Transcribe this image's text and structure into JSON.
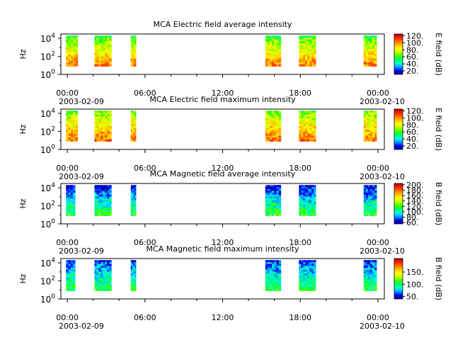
{
  "colors": {
    "axis": "#000000",
    "background": "#ffffff",
    "colormap": [
      "#000090",
      "#0000ff",
      "#00a0ff",
      "#00ffe0",
      "#00ff60",
      "#40ff00",
      "#c0ff00",
      "#ffff00",
      "#ffc000",
      "#ff7000",
      "#ff2000",
      "#b00000"
    ]
  },
  "chart_data": [
    {
      "type": "heatmap",
      "title": "MCA  Electric field average intensity",
      "ylabel": "Hz",
      "xlabel": "",
      "yscale": "log",
      "ylim": [
        1,
        30000
      ],
      "y_ticks": [
        "10",
        "10",
        "10"
      ],
      "y_tick_exps": [
        "0",
        "2",
        "4"
      ],
      "x_ticks": [
        "00:00",
        "06:00",
        "12:00",
        "18:00",
        "00:00"
      ],
      "x_start_label": "2003-02-09",
      "x_end_label": "2003-02-10",
      "xlim_hours": [
        -0.5,
        24.5
      ],
      "data_intervals_hours": [
        [
          -0.1,
          0.8
        ],
        [
          2.1,
          3.4
        ],
        [
          4.9,
          5.3
        ],
        [
          15.3,
          16.5
        ],
        [
          17.9,
          19.2
        ],
        [
          22.9,
          23.9
        ]
      ],
      "colorbar": {
        "label": "E field (dB)",
        "ticks": [
          "20.",
          "40.",
          "60.",
          "80.",
          "100.",
          "120."
        ],
        "tick_values": [
          20,
          40,
          60,
          80,
          100,
          120
        ],
        "range": [
          10,
          125
        ]
      },
      "intensity_profile": {
        "high_freq_level": 0.45,
        "low_freq_level": 0.8,
        "top_band_level": 0.4
      }
    },
    {
      "type": "heatmap",
      "title": "MCA  Electric field maximum intensity",
      "ylabel": "Hz",
      "xlabel": "",
      "yscale": "log",
      "ylim": [
        1,
        30000
      ],
      "y_ticks": [
        "10",
        "10",
        "10"
      ],
      "y_tick_exps": [
        "0",
        "2",
        "4"
      ],
      "x_ticks": [
        "00:00",
        "06:00",
        "12:00",
        "18:00",
        "00:00"
      ],
      "x_start_label": "2003-02-09",
      "x_end_label": "2003-02-10",
      "xlim_hours": [
        -0.5,
        24.5
      ],
      "data_intervals_hours": [
        [
          -0.1,
          0.8
        ],
        [
          2.1,
          3.4
        ],
        [
          4.9,
          5.3
        ],
        [
          15.3,
          16.5
        ],
        [
          17.9,
          19.2
        ],
        [
          22.9,
          23.9
        ]
      ],
      "colorbar": {
        "label": "E field (dB)",
        "ticks": [
          "20.",
          "40.",
          "60.",
          "80.",
          "100.",
          "120."
        ],
        "tick_values": [
          20,
          40,
          60,
          80,
          100,
          120
        ],
        "range": [
          10,
          125
        ]
      },
      "intensity_profile": {
        "high_freq_level": 0.5,
        "low_freq_level": 0.82,
        "top_band_level": 0.45
      }
    },
    {
      "type": "heatmap",
      "title": "MCA  Magnetic field average intensity",
      "ylabel": "Hz",
      "xlabel": "",
      "yscale": "log",
      "ylim": [
        1,
        30000
      ],
      "y_ticks": [
        "10",
        "10",
        "10"
      ],
      "y_tick_exps": [
        "0",
        "2",
        "4"
      ],
      "x_ticks": [
        "00:00",
        "06:00",
        "12:00",
        "18:00",
        "00:00"
      ],
      "x_start_label": "2003-02-09",
      "x_end_label": "2003-02-10",
      "xlim_hours": [
        -0.5,
        24.5
      ],
      "data_intervals_hours": [
        [
          -0.1,
          0.6
        ],
        [
          2.1,
          3.4
        ],
        [
          4.9,
          5.3
        ],
        [
          15.3,
          16.5
        ],
        [
          17.9,
          19.2
        ],
        [
          22.9,
          23.9
        ]
      ],
      "colorbar": {
        "label": "B field (dB)",
        "ticks": [
          "60.",
          "80.",
          "100.",
          "120.",
          "140.",
          "160.",
          "180.",
          "200."
        ],
        "tick_values": [
          60,
          80,
          100,
          120,
          140,
          160,
          180,
          200
        ],
        "range": [
          55,
          205
        ]
      },
      "intensity_profile": {
        "high_freq_level": 0.08,
        "low_freq_level": 0.42,
        "top_band_level": 0.05
      }
    },
    {
      "type": "heatmap",
      "title": "MCA  Magnetic field maximum intensity",
      "ylabel": "Hz",
      "xlabel": "",
      "yscale": "log",
      "ylim": [
        1,
        30000
      ],
      "y_ticks": [
        "10",
        "10",
        "10"
      ],
      "y_tick_exps": [
        "0",
        "2",
        "4"
      ],
      "x_ticks": [
        "00:00",
        "06:00",
        "12:00",
        "18:00",
        "00:00"
      ],
      "x_start_label": "2003-02-09",
      "x_end_label": "2003-02-10",
      "xlim_hours": [
        -0.5,
        24.5
      ],
      "data_intervals_hours": [
        [
          -0.1,
          0.6
        ],
        [
          2.1,
          3.4
        ],
        [
          4.9,
          5.3
        ],
        [
          15.3,
          16.5
        ],
        [
          17.9,
          19.2
        ],
        [
          22.9,
          23.9
        ]
      ],
      "colorbar": {
        "label": "B field (dB)",
        "ticks": [
          "50.",
          "100.",
          "150."
        ],
        "tick_values": [
          50,
          100,
          150
        ],
        "range": [
          40,
          205
        ]
      },
      "intensity_profile": {
        "high_freq_level": 0.12,
        "low_freq_level": 0.4,
        "top_band_level": 0.08
      }
    }
  ]
}
